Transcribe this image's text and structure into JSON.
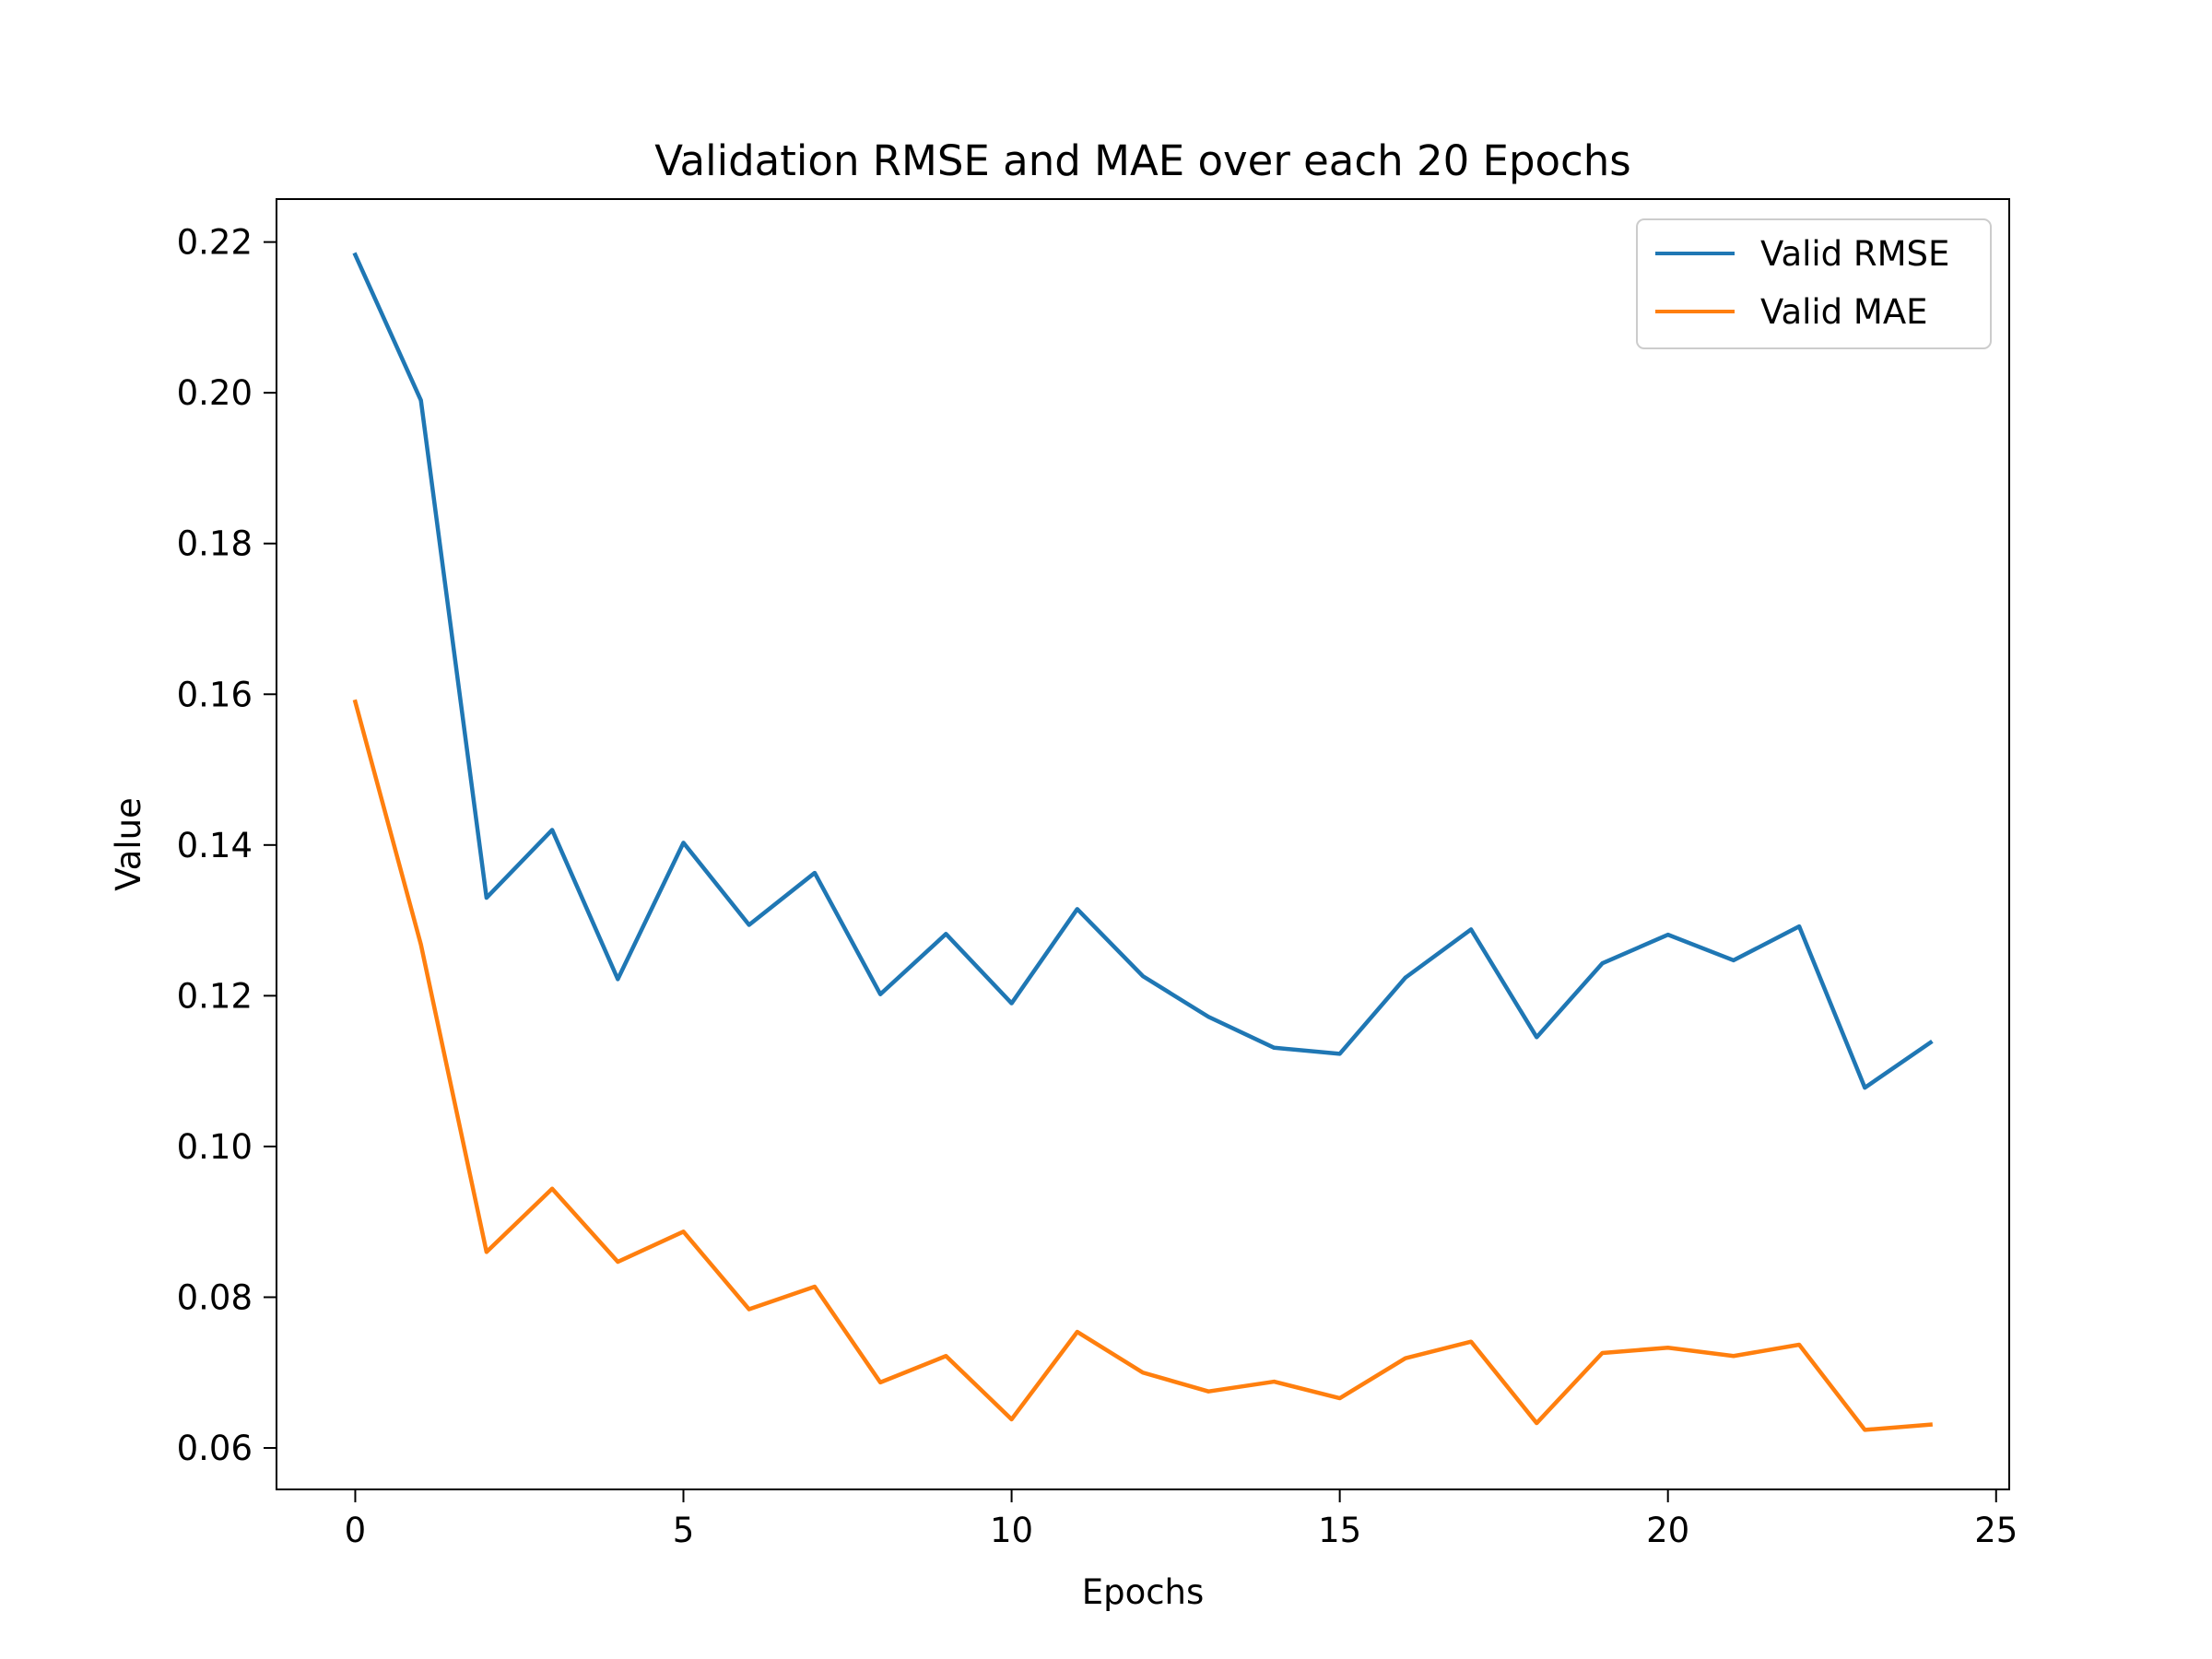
{
  "chart_data": {
    "type": "line",
    "title": "Validation RMSE and MAE over each 20 Epochs",
    "xlabel": "Epochs",
    "ylabel": "Value",
    "x": [
      0,
      1,
      2,
      3,
      4,
      5,
      6,
      7,
      8,
      9,
      10,
      11,
      12,
      13,
      14,
      15,
      16,
      17,
      18,
      19,
      20,
      21,
      22,
      23,
      24
    ],
    "xlim": [
      -1.2,
      25.2
    ],
    "ylim": [
      0.0545,
      0.2257
    ],
    "xticks": [
      0,
      5,
      10,
      15,
      20,
      25
    ],
    "yticks": [
      0.06,
      0.08,
      0.1,
      0.12,
      0.14,
      0.16,
      0.18,
      0.2,
      0.22
    ],
    "ytick_labels": [
      "0.06",
      "0.08",
      "0.10",
      "0.12",
      "0.14",
      "0.16",
      "0.18",
      "0.20",
      "0.22"
    ],
    "grid": false,
    "legend_position": "upper-right",
    "series": [
      {
        "name": "Valid RMSE",
        "color": "#1f77b4",
        "values": [
          0.2183,
          0.199,
          0.133,
          0.142,
          0.1222,
          0.1403,
          0.1294,
          0.1363,
          0.1202,
          0.1282,
          0.119,
          0.1315,
          0.1226,
          0.1172,
          0.1131,
          0.1123,
          0.1224,
          0.1288,
          0.1145,
          0.1243,
          0.1281,
          0.1247,
          0.1292,
          0.1078,
          0.1138
        ]
      },
      {
        "name": "Valid MAE",
        "color": "#ff7f0e",
        "values": [
          0.159,
          0.1268,
          0.086,
          0.0944,
          0.0847,
          0.0887,
          0.0784,
          0.0814,
          0.0687,
          0.0722,
          0.0638,
          0.0754,
          0.07,
          0.0675,
          0.0688,
          0.0666,
          0.0719,
          0.0741,
          0.0633,
          0.0726,
          0.0733,
          0.0722,
          0.0737,
          0.0624,
          0.0631
        ]
      }
    ]
  }
}
